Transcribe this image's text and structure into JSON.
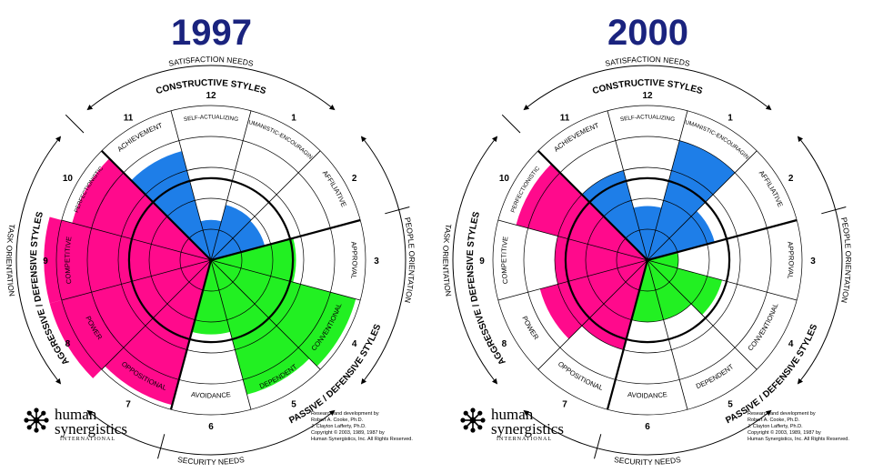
{
  "circumplexes": [
    {
      "title": "1997",
      "extents": [
        0.37,
        0.36,
        0.55,
        0.97,
        0.9,
        0.48,
        0.97,
        1.08,
        1.08,
        0.93,
        0.73,
        0.26
      ],
      "threshold": 0.53
    },
    {
      "title": "2000",
      "extents": [
        0.8,
        0.45,
        0.2,
        0.5,
        0.4,
        0.4,
        0.6,
        0.72,
        0.6,
        0.88,
        0.6,
        0.35
      ],
      "threshold": 0.53
    }
  ],
  "labels": {
    "satisfaction_needs": "SATISFACTION NEEDS",
    "security_needs": "SECURITY NEEDS",
    "task_orientation": "TASK ORIENTATION",
    "people_orientation": "PEOPLE ORIENTATION",
    "constructive": "CONSTRUCTIVE STYLES",
    "passive_defensive": "PASSIVE / DEFENSIVE STYLES",
    "aggressive_defensive": "AGGRESSIVE / DEFENSIVE STYLES",
    "numbers": [
      "1",
      "2",
      "3",
      "4",
      "5",
      "6",
      "7",
      "8",
      "9",
      "10",
      "11",
      "12"
    ],
    "styles": [
      "HUMANISTIC-ENCOURAGING",
      "AFFILIATIVE",
      "APPROVAL",
      "CONVENTIONAL",
      "DEPENDENT",
      "AVOIDANCE",
      "OPPOSITIONAL",
      "POWER",
      "COMPETITIVE",
      "PERFECTIONISTIC",
      "ACHIEVEMENT",
      "SELF-ACTUALIZING"
    ]
  },
  "logo": {
    "line1": "human",
    "line2": "synergistics",
    "line3": "INTERNATIONAL"
  },
  "credits": [
    "Research and development by",
    "Robert A. Cooke, Ph.D.",
    "J. Clayton Lafferty, Ph.D.",
    "Copyright © 2003, 1989, 1987 by",
    "Human Synergistics, Inc. All Rights Reserved."
  ],
  "colors": {
    "title": "#1a237e",
    "constructive": "#1e7ee8",
    "passive_defensive": "#22f022",
    "aggressive_defensive": "#ff0a8c",
    "line": "#000000"
  }
}
